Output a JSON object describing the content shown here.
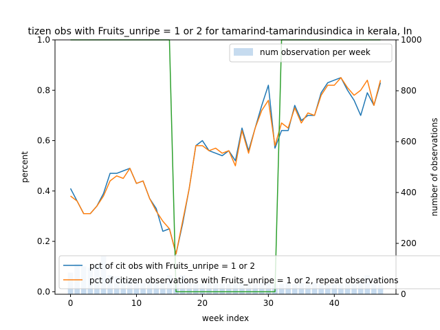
{
  "chart_data": {
    "type": "line",
    "title": "tizen obs with Fruits_unripe = 1 or 2 for tamarind-tamarindusindica in kerala, In",
    "xlabel": "week index",
    "ylabel": "percent",
    "y2label": "number of observations",
    "xlim": [
      -2.35,
      49.35
    ],
    "ylim": [
      -0.01,
      1.0
    ],
    "y2lim": [
      0,
      1000
    ],
    "xticks": [
      0,
      10,
      20,
      30,
      40
    ],
    "yticks": [
      0.0,
      0.2,
      0.4,
      0.6,
      0.8,
      1.0
    ],
    "y2ticks": [
      0,
      200,
      400,
      600,
      800,
      1000
    ],
    "grid": false,
    "legend_upper": {
      "placement": "top-right",
      "entries": [
        "num observation per week"
      ]
    },
    "legend_lower": {
      "placement": "bottom-left",
      "entries": [
        "pct of cit obs with Fruits_unripe = 1 or 2",
        "pct of citizen observations with Fruits_unripe = 1 or 2, repeat observations"
      ]
    },
    "bars": {
      "name": "num observation per week",
      "axis": "right",
      "color": "#c6dbef",
      "x": [
        0,
        1,
        2,
        3,
        4,
        5,
        6,
        7,
        8,
        9,
        10,
        11,
        12,
        13,
        14,
        15,
        16,
        17,
        18,
        19,
        20,
        21,
        22,
        23,
        24,
        25,
        26,
        27,
        28,
        29,
        30,
        31,
        32,
        33,
        34,
        35,
        36,
        37,
        38,
        39,
        40,
        41,
        42,
        43,
        44,
        45,
        46,
        47
      ],
      "values": [
        85,
        120,
        110,
        105,
        120,
        150,
        75,
        70,
        60,
        55,
        50,
        45,
        50,
        45,
        45,
        75,
        40,
        75,
        45,
        40,
        40,
        45,
        40,
        40,
        40,
        40,
        45,
        40,
        40,
        45,
        45,
        40,
        40,
        45,
        40,
        45,
        40,
        45,
        40,
        40,
        40,
        40,
        45,
        40,
        45,
        75,
        40,
        35
      ]
    },
    "series": [
      {
        "name": "pct of cit obs with Fruits_unripe = 1 or 2",
        "color": "#1f77b4",
        "axis": "left",
        "x": [
          0,
          1,
          2,
          3,
          4,
          5,
          6,
          7,
          8,
          9,
          10,
          11,
          12,
          13,
          14,
          15,
          16,
          17,
          18,
          19,
          20,
          21,
          22,
          23,
          24,
          25,
          26,
          27,
          28,
          29,
          30,
          31,
          32,
          33,
          34,
          35,
          36,
          37,
          38,
          39,
          40,
          41,
          42,
          43,
          44,
          45,
          46,
          47
        ],
        "values": [
          0.41,
          0.36,
          0.31,
          0.31,
          0.34,
          0.39,
          0.47,
          0.47,
          0.48,
          0.49,
          0.43,
          0.44,
          0.37,
          0.33,
          0.24,
          0.25,
          0.15,
          0.27,
          0.41,
          0.58,
          0.6,
          0.56,
          0.55,
          0.54,
          0.56,
          0.52,
          0.65,
          0.56,
          0.65,
          0.74,
          0.82,
          0.57,
          0.64,
          0.64,
          0.74,
          0.68,
          0.7,
          0.7,
          0.79,
          0.83,
          0.84,
          0.85,
          0.8,
          0.76,
          0.7,
          0.79,
          0.74,
          0.83
        ]
      },
      {
        "name": "pct of citizen observations with Fruits_unripe = 1 or 2, repeat observations",
        "color": "#ff7f0e",
        "axis": "left",
        "x": [
          0,
          1,
          2,
          3,
          4,
          5,
          6,
          7,
          8,
          9,
          10,
          11,
          12,
          13,
          14,
          15,
          16,
          17,
          18,
          19,
          20,
          21,
          22,
          23,
          24,
          25,
          26,
          27,
          28,
          29,
          30,
          31,
          32,
          33,
          34,
          35,
          36,
          37,
          38,
          39,
          40,
          41,
          42,
          43,
          44,
          45,
          46,
          47
        ],
        "values": [
          0.38,
          0.36,
          0.31,
          0.31,
          0.34,
          0.38,
          0.44,
          0.46,
          0.45,
          0.49,
          0.43,
          0.44,
          0.37,
          0.32,
          0.28,
          0.25,
          0.15,
          0.28,
          0.41,
          0.58,
          0.58,
          0.56,
          0.57,
          0.55,
          0.56,
          0.5,
          0.64,
          0.55,
          0.65,
          0.72,
          0.76,
          0.58,
          0.67,
          0.65,
          0.73,
          0.67,
          0.71,
          0.7,
          0.78,
          0.82,
          0.82,
          0.85,
          0.81,
          0.78,
          0.8,
          0.84,
          0.74,
          0.84
        ]
      },
      {
        "name": "",
        "color": "#2ca02c",
        "axis": "left",
        "x": [
          0,
          15,
          16,
          31,
          32,
          47
        ],
        "values": [
          1.0,
          1.0,
          0.0,
          0.0,
          1.0,
          1.0
        ]
      }
    ]
  }
}
